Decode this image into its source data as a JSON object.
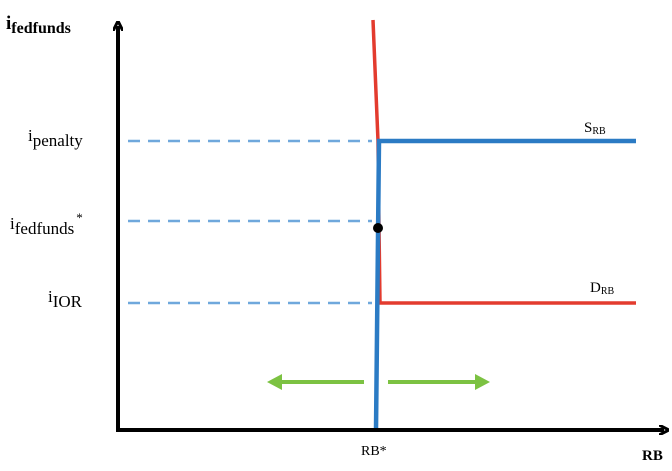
{
  "axes": {
    "y_label_main": "i",
    "y_label_sub": "fedfunds",
    "x_label": "RB"
  },
  "rates": {
    "penalty_main": "i",
    "penalty_sub": "penalty",
    "fedfunds_main": "i",
    "fedfunds_sub": "fedfunds",
    "fedfunds_mark": "*",
    "ior_main": "i",
    "ior_sub": "IOR"
  },
  "curves": {
    "supply_main": "S",
    "supply_sub": "RB",
    "demand_main": "D",
    "demand_sub": "RB"
  },
  "equilibrium": {
    "quantity_label": "RB*"
  },
  "colors": {
    "supply": "#2b7bc4",
    "demand": "#e33b2e",
    "guide": "#6fa8dc",
    "shift_arrow": "#7cc242",
    "axis": "#000000"
  }
}
